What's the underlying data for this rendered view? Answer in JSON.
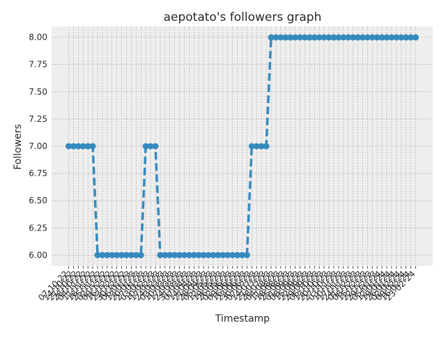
{
  "chart_data": {
    "type": "line",
    "title": "aepotato's followers graph",
    "xlabel": "Timestamp",
    "ylabel": "Followers",
    "ylim": [
      5.9,
      8.1
    ],
    "yticks": [
      "6.00",
      "6.25",
      "6.50",
      "6.75",
      "7.00",
      "7.25",
      "7.50",
      "7.75",
      "8.00"
    ],
    "ytick_values": [
      6.0,
      6.25,
      6.5,
      6.75,
      7.0,
      7.25,
      7.5,
      7.75,
      8.0
    ],
    "grid": true,
    "style": "bmh",
    "colors": {
      "line": "#348ABD",
      "plot_bg": "#EEEEEE",
      "grid": "#9E9E9E"
    },
    "x_tick_labels": [
      "07-10-22",
      "14-10-22",
      "21-10-22",
      "28-10-22",
      "04-11-22",
      "11-11-22",
      "18-11-22",
      "25-11-22",
      "02-12-22",
      "09-12-22",
      "16-12-22",
      "23-12-22",
      "30-12-22",
      "06-01-23",
      "13-01-23",
      "20-01-23",
      "27-01-23",
      "03-02-23",
      "10-02-23",
      "17-02-23",
      "24-02-23",
      "03-03-23",
      "10-03-23",
      "17-03-23",
      "24-03-23",
      "31-03-23",
      "07-04-23",
      "14-04-23",
      "21-04-23",
      "28-04-23",
      "05-05-23",
      "12-05-23",
      "19-05-23",
      "26-05-23",
      "02-06-23",
      "09-06-23",
      "16-06-23",
      "23-06-23",
      "30-06-23",
      "07-07-23",
      "14-07-23",
      "21-07-23",
      "28-07-23",
      "04-08-23",
      "11-08-23",
      "18-08-23",
      "25-08-23",
      "01-09-23",
      "08-09-23",
      "15-09-23",
      "22-09-23",
      "29-09-23",
      "06-10-23",
      "13-10-23",
      "20-10-23",
      "27-10-23",
      "03-11-23",
      "10-11-23",
      "17-11-23",
      "24-11-23",
      "01-12-23",
      "08-12-23",
      "15-12-23",
      "22-12-23",
      "29-12-23",
      "05-01-24",
      "12-01-24",
      "19-01-24",
      "26-01-24",
      "02-02-24",
      "09-02-24",
      "16-02-24",
      "23-02-24"
    ],
    "values": [
      7,
      7,
      7,
      7,
      7,
      7,
      6,
      6,
      6,
      6,
      6,
      6,
      6,
      6,
      6,
      6,
      7,
      7,
      7,
      6,
      6,
      6,
      6,
      6,
      6,
      6,
      6,
      6,
      6,
      6,
      6,
      6,
      6,
      6,
      6,
      6,
      6,
      6,
      7,
      7,
      7,
      7,
      8,
      8,
      8,
      8,
      8,
      8,
      8,
      8,
      8,
      8,
      8,
      8,
      8,
      8,
      8,
      8,
      8,
      8,
      8,
      8,
      8,
      8,
      8,
      8,
      8,
      8,
      8,
      8,
      8,
      8,
      8
    ]
  }
}
